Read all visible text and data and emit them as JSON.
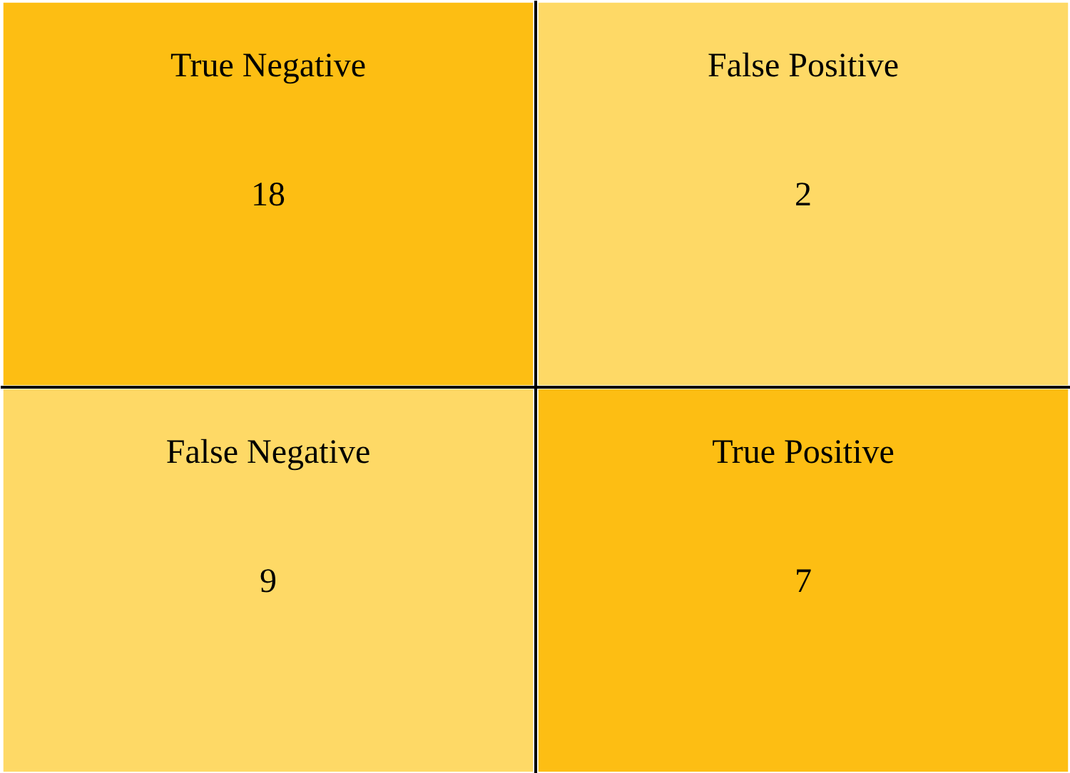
{
  "chart_data": {
    "type": "heatmap",
    "categories": [
      null,
      null
    ],
    "y_categories": [
      null,
      null
    ],
    "cells": [
      [
        18,
        2
      ],
      [
        9,
        7
      ]
    ],
    "data_labels": true,
    "annotations": [
      "True Negative",
      "False Positive",
      "False Negative",
      "True Positive"
    ],
    "colors": [
      [
        "#fdbe13",
        "#fed966"
      ],
      [
        "#fed966",
        "#fdbe13"
      ]
    ]
  }
}
